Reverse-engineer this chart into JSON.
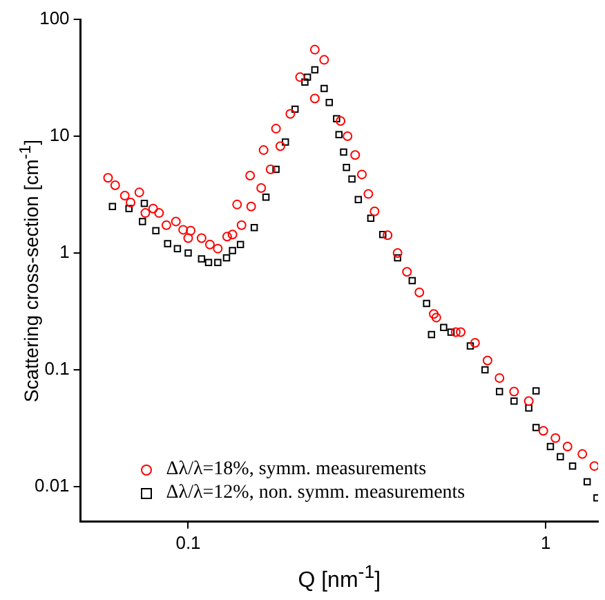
{
  "chart_data": {
    "type": "scatter",
    "xlabel": "Q [nm$^{-1}$]",
    "ylabel": "Scattering cross-section [cm$^{-1}$]",
    "log": "xy",
    "xlim": [
      0.05,
      1.4
    ],
    "ylim": [
      0.005,
      100
    ],
    "xticks": [
      0.1,
      1
    ],
    "yticks": [
      0.01,
      0.1,
      1,
      10,
      100
    ],
    "grid": false,
    "legend": "bottom",
    "series": [
      {
        "name": "Δλ/λ=18%, symm. measurements",
        "color": "#ff0000",
        "marker": "circle",
        "x": [
          0.0597,
          0.0625,
          0.0665,
          0.069,
          0.073,
          0.0759,
          0.0798,
          0.0829,
          0.0869,
          0.0924,
          0.0968,
          0.1,
          0.1016,
          0.109,
          0.115,
          0.121,
          0.1285,
          0.133,
          0.137,
          0.141,
          0.149,
          0.15,
          0.16,
          0.1625,
          0.17,
          0.176,
          0.181,
          0.193,
          0.2055,
          0.226,
          0.226,
          0.24,
          0.2667,
          0.279,
          0.293,
          0.306,
          0.319,
          0.332,
          0.361,
          0.385,
          0.409,
          0.443,
          0.486,
          0.494,
          0.56,
          0.578,
          0.634,
          0.687,
          0.742,
          0.815,
          0.896,
          0.984,
          1.064,
          1.15,
          1.265,
          1.367
        ],
        "values": [
          4.4,
          3.8,
          3.1,
          2.7,
          3.3,
          2.2,
          2.4,
          2.2,
          1.73,
          1.86,
          1.58,
          1.34,
          1.55,
          1.34,
          1.18,
          1.09,
          1.38,
          1.44,
          2.6,
          1.73,
          4.6,
          2.5,
          3.6,
          7.6,
          5.2,
          11.6,
          8.2,
          15.5,
          32,
          55,
          21,
          45,
          13.5,
          10,
          6.9,
          4.7,
          3.2,
          2.27,
          1.42,
          1,
          0.69,
          0.46,
          0.3,
          0.28,
          0.21,
          0.21,
          0.17,
          0.12,
          0.085,
          0.065,
          0.054,
          0.03,
          0.026,
          0.022,
          0.019,
          0.015
        ]
      },
      {
        "name": "Δλ/λ=12%, non. symm. measurements",
        "color": "#000000",
        "marker": "square",
        "x": [
          0.0614,
          0.0683,
          0.0745,
          0.0754,
          0.0812,
          0.0876,
          0.0933,
          0.1,
          0.109,
          0.114,
          0.121,
          0.128,
          0.133,
          0.14,
          0.153,
          0.165,
          0.176,
          0.187,
          0.199,
          0.212,
          0.2155,
          0.226,
          0.24,
          0.248,
          0.26,
          0.264,
          0.272,
          0.277,
          0.287,
          0.299,
          0.324,
          0.35,
          0.385,
          0.423,
          0.464,
          0.479,
          0.518,
          0.543,
          0.615,
          0.676,
          0.742,
          0.815,
          0.896,
          0.939,
          0.939,
          1.03,
          1.098,
          1.188,
          1.305,
          1.39
        ],
        "values": [
          2.5,
          2.4,
          1.86,
          2.66,
          1.55,
          1.2,
          1.09,
          1,
          0.89,
          0.83,
          0.83,
          0.91,
          1.05,
          1.18,
          1.65,
          3,
          5.2,
          8.9,
          17,
          29,
          32,
          37,
          25.6,
          19.4,
          14.1,
          10.3,
          7.3,
          5.4,
          4.3,
          2.86,
          1.98,
          1.44,
          0.91,
          0.58,
          0.37,
          0.2,
          0.23,
          0.21,
          0.16,
          0.1,
          0.065,
          0.054,
          0.047,
          0.066,
          0.032,
          0.022,
          0.018,
          0.015,
          0.011,
          0.008
        ]
      }
    ]
  }
}
